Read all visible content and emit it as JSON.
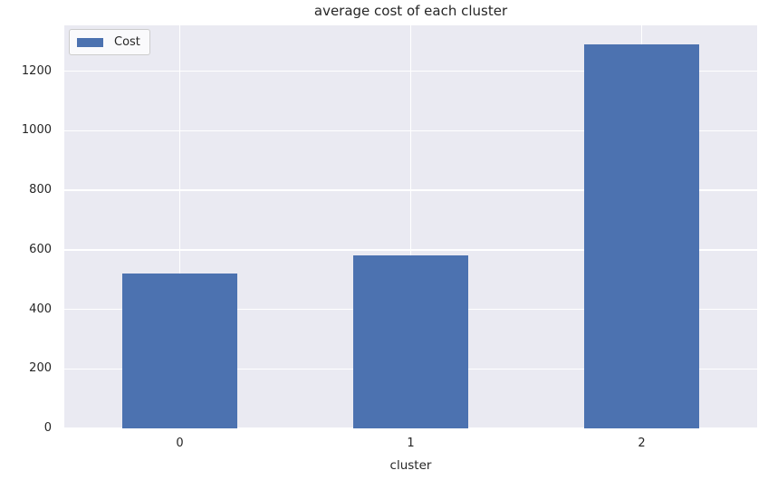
{
  "chart_data": {
    "type": "bar",
    "title": "average cost of each cluster",
    "xlabel": "cluster",
    "ylabel": "",
    "categories": [
      "0",
      "1",
      "2"
    ],
    "series": [
      {
        "name": "Cost",
        "values": [
          520,
          582,
          1290
        ]
      }
    ],
    "yticks": [
      0,
      200,
      400,
      600,
      800,
      1000,
      1200
    ],
    "ylim": [
      0,
      1354
    ],
    "xlim": [
      -0.5,
      2.5
    ],
    "bar_width_fraction": 0.5,
    "grid": true,
    "legend_position": "upper left",
    "colors": {
      "bar": "#4c72b0",
      "plot_bg": "#eaeaf2",
      "grid": "#ffffff",
      "text": "#262626",
      "figure_bg": "#ffffff",
      "legend_border": "#cccccc"
    }
  }
}
